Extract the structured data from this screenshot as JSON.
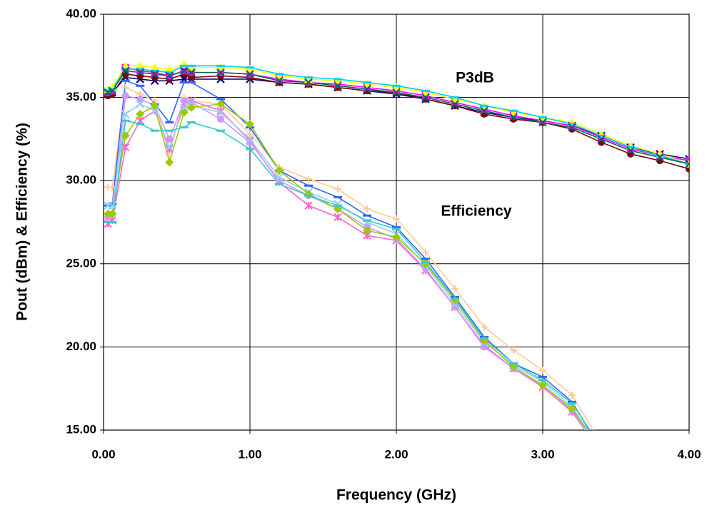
{
  "chart_data": {
    "type": "line",
    "x_label": "Frequency (GHz)",
    "y_label": "Pout (dBm) & Efficiency (%)",
    "annotations": [
      "P3dB",
      "Efficiency"
    ],
    "x": [
      0.03,
      0.06,
      0.15,
      0.25,
      0.35,
      0.45,
      0.55,
      0.6,
      0.8,
      1.0,
      1.2,
      1.4,
      1.6,
      1.8,
      2.0,
      2.2,
      2.4,
      2.6,
      2.8,
      3.0,
      3.2,
      3.4,
      3.6,
      3.8,
      4.0
    ],
    "xlim": [
      0,
      4
    ],
    "xticks": [
      {
        "value": 0,
        "label": "0.00"
      },
      {
        "value": 1,
        "label": "1.00"
      },
      {
        "value": 2,
        "label": "2.00"
      },
      {
        "value": 3,
        "label": "3.00"
      },
      {
        "value": 4,
        "label": "4.00"
      }
    ],
    "ylim": [
      15,
      40
    ],
    "yticks": [
      {
        "value": 15,
        "label": "15.00"
      },
      {
        "value": 20,
        "label": "20.00"
      },
      {
        "value": 25,
        "label": "25.00"
      },
      {
        "value": 30,
        "label": "30.00"
      },
      {
        "value": 35,
        "label": "35.00"
      },
      {
        "value": 40,
        "label": "40.00"
      }
    ],
    "grid": true,
    "series": [
      {
        "color": "#000080",
        "marker": "x",
        "values": [
          35.2,
          35.3,
          36.2,
          36.1,
          36.0,
          36.0,
          36.1,
          36.1,
          36.1,
          36.1,
          35.9,
          35.8,
          35.6,
          35.4,
          35.2,
          34.9,
          34.5,
          34.1,
          33.8,
          33.6,
          33.3,
          32.7,
          32.0,
          31.6,
          31.3
        ]
      },
      {
        "color": "#800000",
        "marker": "circle",
        "values": [
          35.1,
          35.2,
          36.4,
          36.3,
          36.2,
          36.1,
          36.4,
          36.2,
          36.3,
          36.2,
          35.9,
          35.8,
          35.6,
          35.4,
          35.3,
          34.9,
          34.5,
          34.0,
          33.7,
          33.5,
          33.1,
          32.3,
          31.6,
          31.2,
          30.7
        ]
      },
      {
        "color": "#ff00ff",
        "marker": "square",
        "values": [
          35.3,
          35.4,
          36.8,
          36.6,
          36.5,
          36.3,
          36.6,
          36.5,
          36.5,
          36.4,
          36.1,
          35.9,
          35.8,
          35.6,
          35.4,
          35.1,
          34.7,
          34.3,
          33.9,
          33.6,
          33.3,
          32.6,
          31.9,
          31.5,
          31.2
        ]
      },
      {
        "color": "#ffff00",
        "marker": "triangle",
        "values": [
          35.5,
          35.6,
          36.9,
          36.9,
          36.8,
          36.7,
          37.0,
          36.8,
          36.8,
          36.7,
          36.3,
          36.1,
          36.0,
          35.8,
          35.6,
          35.3,
          34.9,
          34.5,
          34.1,
          33.8,
          33.5,
          32.8,
          32.1,
          31.6,
          31.0
        ]
      },
      {
        "color": "#00ccff",
        "marker": "dash",
        "values": [
          35.4,
          35.5,
          36.7,
          36.7,
          36.6,
          36.5,
          36.9,
          36.9,
          36.9,
          36.8,
          36.4,
          36.2,
          36.1,
          35.9,
          35.7,
          35.4,
          35.0,
          34.5,
          34.2,
          33.8,
          33.4,
          32.7,
          32.0,
          31.5,
          31.0
        ]
      },
      {
        "color": "#006666",
        "marker": "x",
        "values": [
          35.3,
          35.4,
          36.6,
          36.5,
          36.4,
          36.3,
          36.6,
          36.5,
          36.5,
          36.4,
          36.0,
          35.9,
          35.7,
          35.5,
          35.3,
          35.0,
          34.6,
          34.2,
          33.8,
          33.5,
          33.2,
          32.5,
          31.8,
          31.4,
          31.0
        ]
      },
      {
        "color": "#ffcc99",
        "marker": "plus",
        "values": [
          29.6,
          29.6,
          35.6,
          35.2,
          34.8,
          31.5,
          35.0,
          34.8,
          34.6,
          32.8,
          30.8,
          30.1,
          29.5,
          28.3,
          27.7,
          25.7,
          23.5,
          21.2,
          19.8,
          18.6,
          17.1,
          14.2,
          null,
          null,
          null
        ]
      },
      {
        "color": "#3366ff",
        "marker": "dash",
        "values": [
          28.5,
          28.6,
          36.0,
          35.7,
          34.6,
          33.5,
          35.9,
          35.9,
          34.9,
          33.2,
          30.6,
          29.7,
          29.0,
          27.9,
          27.2,
          25.3,
          23.0,
          20.6,
          19.0,
          18.2,
          16.7,
          13.8,
          null,
          null,
          null
        ]
      },
      {
        "color": "#ff66cc",
        "marker": "star",
        "values": [
          27.4,
          27.6,
          32.0,
          33.6,
          34.2,
          31.9,
          34.6,
          34.8,
          34.2,
          32.4,
          29.9,
          28.5,
          27.8,
          26.7,
          26.4,
          24.6,
          22.4,
          20.1,
          18.7,
          17.6,
          16.1,
          13.6,
          null,
          null,
          null
        ]
      },
      {
        "color": "#cc99ff",
        "marker": "circle",
        "values": [
          27.8,
          28.0,
          35.1,
          34.9,
          34.5,
          32.5,
          34.8,
          34.7,
          33.7,
          32.3,
          30.0,
          29.1,
          28.3,
          27.2,
          26.5,
          24.7,
          22.4,
          20.0,
          18.7,
          17.7,
          16.2,
          13.5,
          null,
          null,
          null
        ]
      },
      {
        "color": "#99ccff",
        "marker": "x",
        "values": [
          28.5,
          28.5,
          34.0,
          34.6,
          34.2,
          32.0,
          34.4,
          34.5,
          34.1,
          32.5,
          30.2,
          29.3,
          28.6,
          27.5,
          26.8,
          24.9,
          22.6,
          20.3,
          18.9,
          17.9,
          16.4,
          13.8,
          null,
          null,
          null
        ]
      },
      {
        "color": "#99cc00",
        "marker": "diamond",
        "values": [
          28.0,
          28.0,
          32.7,
          34.0,
          34.5,
          31.1,
          34.1,
          34.4,
          34.6,
          33.4,
          30.6,
          29.2,
          28.3,
          27.0,
          26.6,
          25.0,
          22.8,
          20.4,
          18.8,
          17.7,
          16.3,
          13.7,
          null,
          null,
          null
        ]
      },
      {
        "color": "#33cccc",
        "marker": "dash",
        "values": [
          27.5,
          27.5,
          33.6,
          33.4,
          33.0,
          33.0,
          33.2,
          33.5,
          33.0,
          31.9,
          29.8,
          29.1,
          28.5,
          27.6,
          27.1,
          25.1,
          22.9,
          20.5,
          19.0,
          18.0,
          16.6,
          14.0,
          null,
          null,
          null
        ]
      }
    ]
  }
}
